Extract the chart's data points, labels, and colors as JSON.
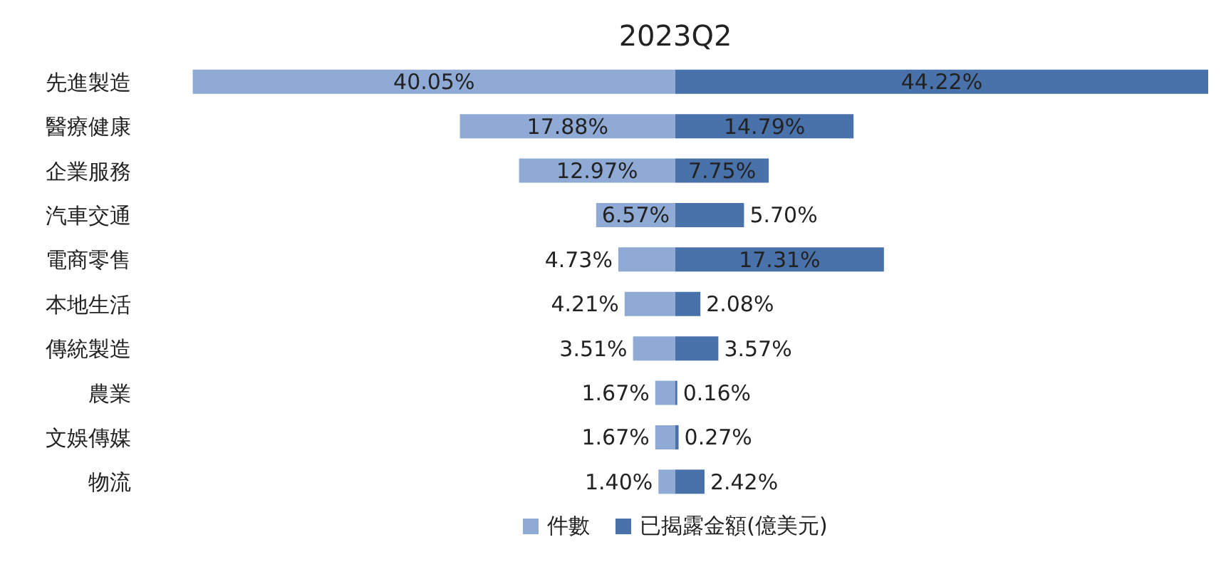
{
  "chart_data": [
    {
      "type": "bar",
      "orientation": "horizontal",
      "title": "2023Q2",
      "categories": [
        "先進製造",
        "醫療健康",
        "企業服務",
        "汽車交通",
        "電商零售",
        "本地生活",
        "傳統製造",
        "農業",
        "文娛傳媒",
        "物流"
      ],
      "tick_labels": "y",
      "legend": "bottom",
      "series": [
        {
          "name": "件數",
          "color": "#8faad4",
          "values": [
            40.05,
            17.88,
            12.97,
            6.57,
            4.73,
            4.21,
            3.51,
            1.67,
            1.67,
            1.4
          ],
          "value_labels": [
            "40.05%",
            "17.88%",
            "12.97%",
            "6.57%",
            "4.73%",
            "4.21%",
            "3.51%",
            "1.67%",
            "1.67%",
            "1.40%"
          ]
        }
      ]
    },
    {
      "type": "bar",
      "orientation": "horizontal",
      "categories": [
        null,
        null,
        null,
        null,
        null,
        null,
        null,
        null,
        null,
        null
      ],
      "tick_labels": false,
      "legend": "bottom",
      "series": [
        {
          "name": "已揭露金額(億美元)",
          "color": "#4a72aa",
          "values": [
            44.22,
            14.79,
            7.75,
            5.7,
            17.31,
            2.08,
            3.57,
            0.16,
            0.27,
            2.42
          ],
          "value_labels": [
            "44.22%",
            "14.79%",
            "7.75%",
            "5.70%",
            "17.31%",
            "2.08%",
            "3.57%",
            "0.16%",
            "0.27%",
            "2.42%"
          ]
        }
      ]
    }
  ]
}
